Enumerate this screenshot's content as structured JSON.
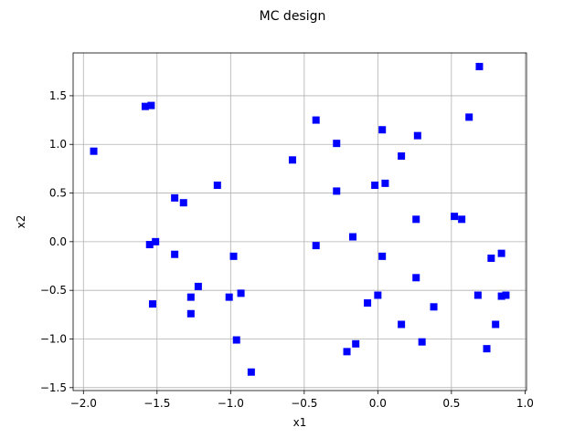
{
  "chart_data": {
    "type": "scatter",
    "title": "MC design",
    "xlabel": "x1",
    "ylabel": "x2",
    "xlim": [
      -2.07,
      1.01
    ],
    "ylim": [
      -1.53,
      1.94
    ],
    "xticks": [
      -2.0,
      -1.5,
      -1.0,
      -0.5,
      0.0,
      0.5,
      1.0
    ],
    "xtick_labels": [
      "−2.0",
      "−1.5",
      "−1.0",
      "−0.5",
      "0.0",
      "0.5",
      "1.0"
    ],
    "yticks": [
      -1.5,
      -1.0,
      -0.5,
      0.0,
      0.5,
      1.0,
      1.5
    ],
    "ytick_labels": [
      "−1.5",
      "−1.0",
      "−0.5",
      "0.0",
      "0.5",
      "1.0",
      "1.5"
    ],
    "grid": true,
    "marker": "square",
    "color": "#0000ff",
    "points": [
      [
        -1.93,
        0.93
      ],
      [
        -1.58,
        1.39
      ],
      [
        -1.54,
        1.4
      ],
      [
        -1.55,
        -0.03
      ],
      [
        -1.51,
        0.0
      ],
      [
        -1.53,
        -0.64
      ],
      [
        -1.38,
        0.45
      ],
      [
        -1.38,
        -0.13
      ],
      [
        -1.32,
        0.4
      ],
      [
        -1.27,
        -0.57
      ],
      [
        -1.27,
        -0.74
      ],
      [
        -1.22,
        -0.46
      ],
      [
        -1.09,
        0.58
      ],
      [
        -1.01,
        -0.57
      ],
      [
        -0.98,
        -0.15
      ],
      [
        -0.96,
        -1.01
      ],
      [
        -0.93,
        -0.53
      ],
      [
        -0.86,
        -1.34
      ],
      [
        -0.58,
        0.84
      ],
      [
        -0.42,
        1.25
      ],
      [
        -0.42,
        -0.04
      ],
      [
        -0.28,
        1.01
      ],
      [
        -0.28,
        0.52
      ],
      [
        -0.21,
        -1.13
      ],
      [
        -0.17,
        0.05
      ],
      [
        -0.15,
        -1.05
      ],
      [
        -0.07,
        -0.63
      ],
      [
        -0.02,
        0.58
      ],
      [
        0.0,
        -0.55
      ],
      [
        0.03,
        1.15
      ],
      [
        0.03,
        -0.15
      ],
      [
        0.05,
        0.6
      ],
      [
        0.16,
        0.88
      ],
      [
        0.16,
        -0.85
      ],
      [
        0.26,
        0.23
      ],
      [
        0.26,
        -0.37
      ],
      [
        0.27,
        1.09
      ],
      [
        0.3,
        -1.03
      ],
      [
        0.38,
        -0.67
      ],
      [
        0.52,
        0.26
      ],
      [
        0.57,
        0.23
      ],
      [
        0.62,
        1.28
      ],
      [
        0.68,
        -0.55
      ],
      [
        0.69,
        1.8
      ],
      [
        0.74,
        -1.1
      ],
      [
        0.77,
        -0.17
      ],
      [
        0.8,
        -0.85
      ],
      [
        0.84,
        -0.12
      ],
      [
        0.84,
        -0.56
      ],
      [
        0.87,
        -0.55
      ]
    ]
  }
}
